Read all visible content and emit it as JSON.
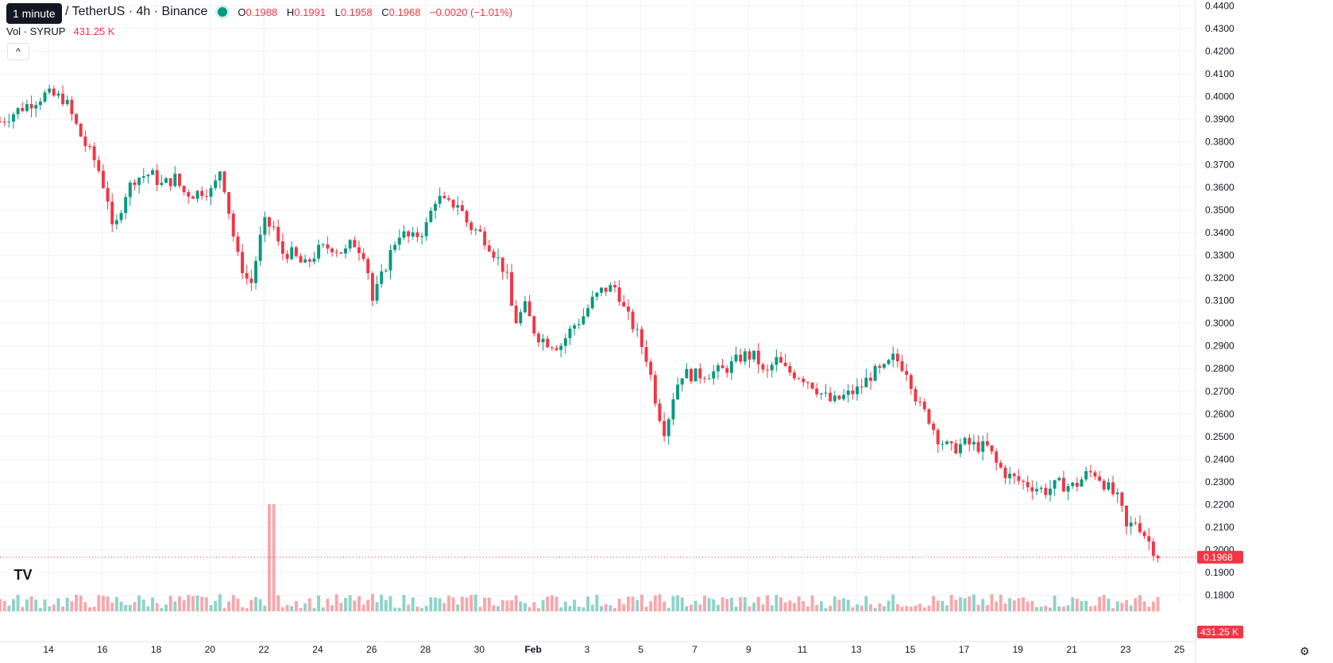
{
  "header": {
    "tooltip": "1 minute",
    "title": "/ TetherUS · 4h · Binance",
    "status_icon": "status-dot-icon",
    "ohlc": {
      "o_label": "O",
      "o": "0.1988",
      "h_label": "H",
      "h": "0.1991",
      "l_label": "L",
      "l": "0.1958",
      "c_label": "C",
      "c": "0.1968",
      "change": "−0.0020 (−1.01%)"
    },
    "volume": {
      "label": "Vol · SYRUP",
      "value": "431.25 K"
    }
  },
  "colors": {
    "up": "#089981",
    "down": "#f23645",
    "volume_up": "#8fd3c9",
    "volume_down": "#f7a8ad",
    "grid": "#f0f3fa"
  },
  "price_axis": {
    "ticks": [
      "0.4400",
      "0.4300",
      "0.4200",
      "0.4100",
      "0.4000",
      "0.3900",
      "0.3800",
      "0.3700",
      "0.3600",
      "0.3500",
      "0.3400",
      "0.3300",
      "0.3200",
      "0.3100",
      "0.3000",
      "0.2900",
      "0.2800",
      "0.2700",
      "0.2600",
      "0.2500",
      "0.2400",
      "0.2300",
      "0.2200",
      "0.2100",
      "0.2000",
      "0.1900",
      "0.1800"
    ],
    "last_price_label": "0.1968",
    "volume_label": "431.25 K"
  },
  "time_axis": {
    "ticks": [
      {
        "t": 14,
        "label": "14"
      },
      {
        "t": 16,
        "label": "16"
      },
      {
        "t": 18,
        "label": "18"
      },
      {
        "t": 20,
        "label": "20"
      },
      {
        "t": 22,
        "label": "22"
      },
      {
        "t": 24,
        "label": "24"
      },
      {
        "t": 26,
        "label": "26"
      },
      {
        "t": 28,
        "label": "28"
      },
      {
        "t": 30,
        "label": "30"
      },
      {
        "t": 32,
        "label": "Feb"
      },
      {
        "t": 34,
        "label": "3"
      },
      {
        "t": 36,
        "label": "5"
      },
      {
        "t": 38,
        "label": "7"
      },
      {
        "t": 40,
        "label": "9"
      },
      {
        "t": 42,
        "label": "11"
      },
      {
        "t": 44,
        "label": "13"
      },
      {
        "t": 46,
        "label": "15"
      },
      {
        "t": 48,
        "label": "17"
      },
      {
        "t": 50,
        "label": "19"
      },
      {
        "t": 52,
        "label": "21"
      },
      {
        "t": 54,
        "label": "23"
      },
      {
        "t": 56,
        "label": "25"
      }
    ]
  },
  "chart_data": {
    "type": "candlestick",
    "ylim": [
      0.175,
      0.4405
    ],
    "xlim": [
      12.2,
      56.6
    ],
    "grid": true,
    "anchors": [
      [
        12.2,
        0.389
      ],
      [
        13.0,
        0.395
      ],
      [
        13.9,
        0.401
      ],
      [
        14.6,
        0.399
      ],
      [
        15.0,
        0.388
      ],
      [
        15.3,
        0.38
      ],
      [
        15.8,
        0.37
      ],
      [
        16.2,
        0.355
      ],
      [
        16.4,
        0.338
      ],
      [
        16.8,
        0.356
      ],
      [
        17.2,
        0.364
      ],
      [
        17.8,
        0.366
      ],
      [
        18.2,
        0.361
      ],
      [
        18.7,
        0.364
      ],
      [
        19.0,
        0.358
      ],
      [
        19.4,
        0.357
      ],
      [
        19.8,
        0.359
      ],
      [
        20.1,
        0.358
      ],
      [
        20.4,
        0.369
      ],
      [
        20.6,
        0.356
      ],
      [
        21.0,
        0.33
      ],
      [
        21.5,
        0.316
      ],
      [
        21.8,
        0.334
      ],
      [
        22.0,
        0.344
      ],
      [
        22.4,
        0.342
      ],
      [
        22.6,
        0.331
      ],
      [
        23.0,
        0.331
      ],
      [
        23.5,
        0.325
      ],
      [
        24.0,
        0.332
      ],
      [
        24.5,
        0.334
      ],
      [
        25.0,
        0.331
      ],
      [
        25.3,
        0.336
      ],
      [
        25.8,
        0.33
      ],
      [
        26.0,
        0.309
      ],
      [
        26.3,
        0.318
      ],
      [
        26.6,
        0.328
      ],
      [
        27.0,
        0.34
      ],
      [
        27.5,
        0.337
      ],
      [
        28.0,
        0.342
      ],
      [
        28.4,
        0.356
      ],
      [
        28.8,
        0.352
      ],
      [
        29.2,
        0.353
      ],
      [
        29.6,
        0.343
      ],
      [
        30.0,
        0.34
      ],
      [
        30.3,
        0.336
      ],
      [
        30.7,
        0.328
      ],
      [
        31.0,
        0.322
      ],
      [
        31.3,
        0.3
      ],
      [
        31.7,
        0.307
      ],
      [
        32.1,
        0.295
      ],
      [
        32.5,
        0.292
      ],
      [
        33.0,
        0.29
      ],
      [
        33.5,
        0.299
      ],
      [
        33.8,
        0.302
      ],
      [
        34.2,
        0.31
      ],
      [
        34.6,
        0.315
      ],
      [
        35.1,
        0.316
      ],
      [
        35.4,
        0.305
      ],
      [
        35.8,
        0.297
      ],
      [
        36.2,
        0.285
      ],
      [
        36.4,
        0.275
      ],
      [
        36.6,
        0.263
      ],
      [
        36.9,
        0.252
      ],
      [
        37.2,
        0.268
      ],
      [
        37.5,
        0.278
      ],
      [
        38.0,
        0.277
      ],
      [
        38.5,
        0.278
      ],
      [
        39.0,
        0.279
      ],
      [
        39.3,
        0.281
      ],
      [
        39.8,
        0.286
      ],
      [
        40.3,
        0.285
      ],
      [
        40.6,
        0.276
      ],
      [
        41.0,
        0.284
      ],
      [
        41.4,
        0.279
      ],
      [
        41.9,
        0.277
      ],
      [
        42.3,
        0.274
      ],
      [
        42.7,
        0.269
      ],
      [
        43.1,
        0.265
      ],
      [
        43.6,
        0.268
      ],
      [
        44.1,
        0.271
      ],
      [
        44.6,
        0.278
      ],
      [
        45.0,
        0.279
      ],
      [
        45.4,
        0.285
      ],
      [
        45.9,
        0.279
      ],
      [
        46.3,
        0.264
      ],
      [
        46.7,
        0.258
      ],
      [
        47.0,
        0.25
      ],
      [
        47.5,
        0.244
      ],
      [
        48.0,
        0.247
      ],
      [
        48.4,
        0.246
      ],
      [
        48.9,
        0.245
      ],
      [
        49.2,
        0.238
      ],
      [
        49.6,
        0.233
      ],
      [
        50.1,
        0.23
      ],
      [
        50.6,
        0.228
      ],
      [
        51.0,
        0.226
      ],
      [
        51.5,
        0.229
      ],
      [
        52.1,
        0.228
      ],
      [
        52.6,
        0.234
      ],
      [
        52.9,
        0.234
      ],
      [
        53.3,
        0.228
      ],
      [
        53.8,
        0.221
      ],
      [
        54.0,
        0.209
      ],
      [
        54.4,
        0.213
      ],
      [
        54.8,
        0.205
      ],
      [
        55.1,
        0.199
      ],
      [
        55.3,
        0.1968
      ]
    ],
    "volume_spike": {
      "t": 22.3,
      "ratio": 7.5
    }
  }
}
